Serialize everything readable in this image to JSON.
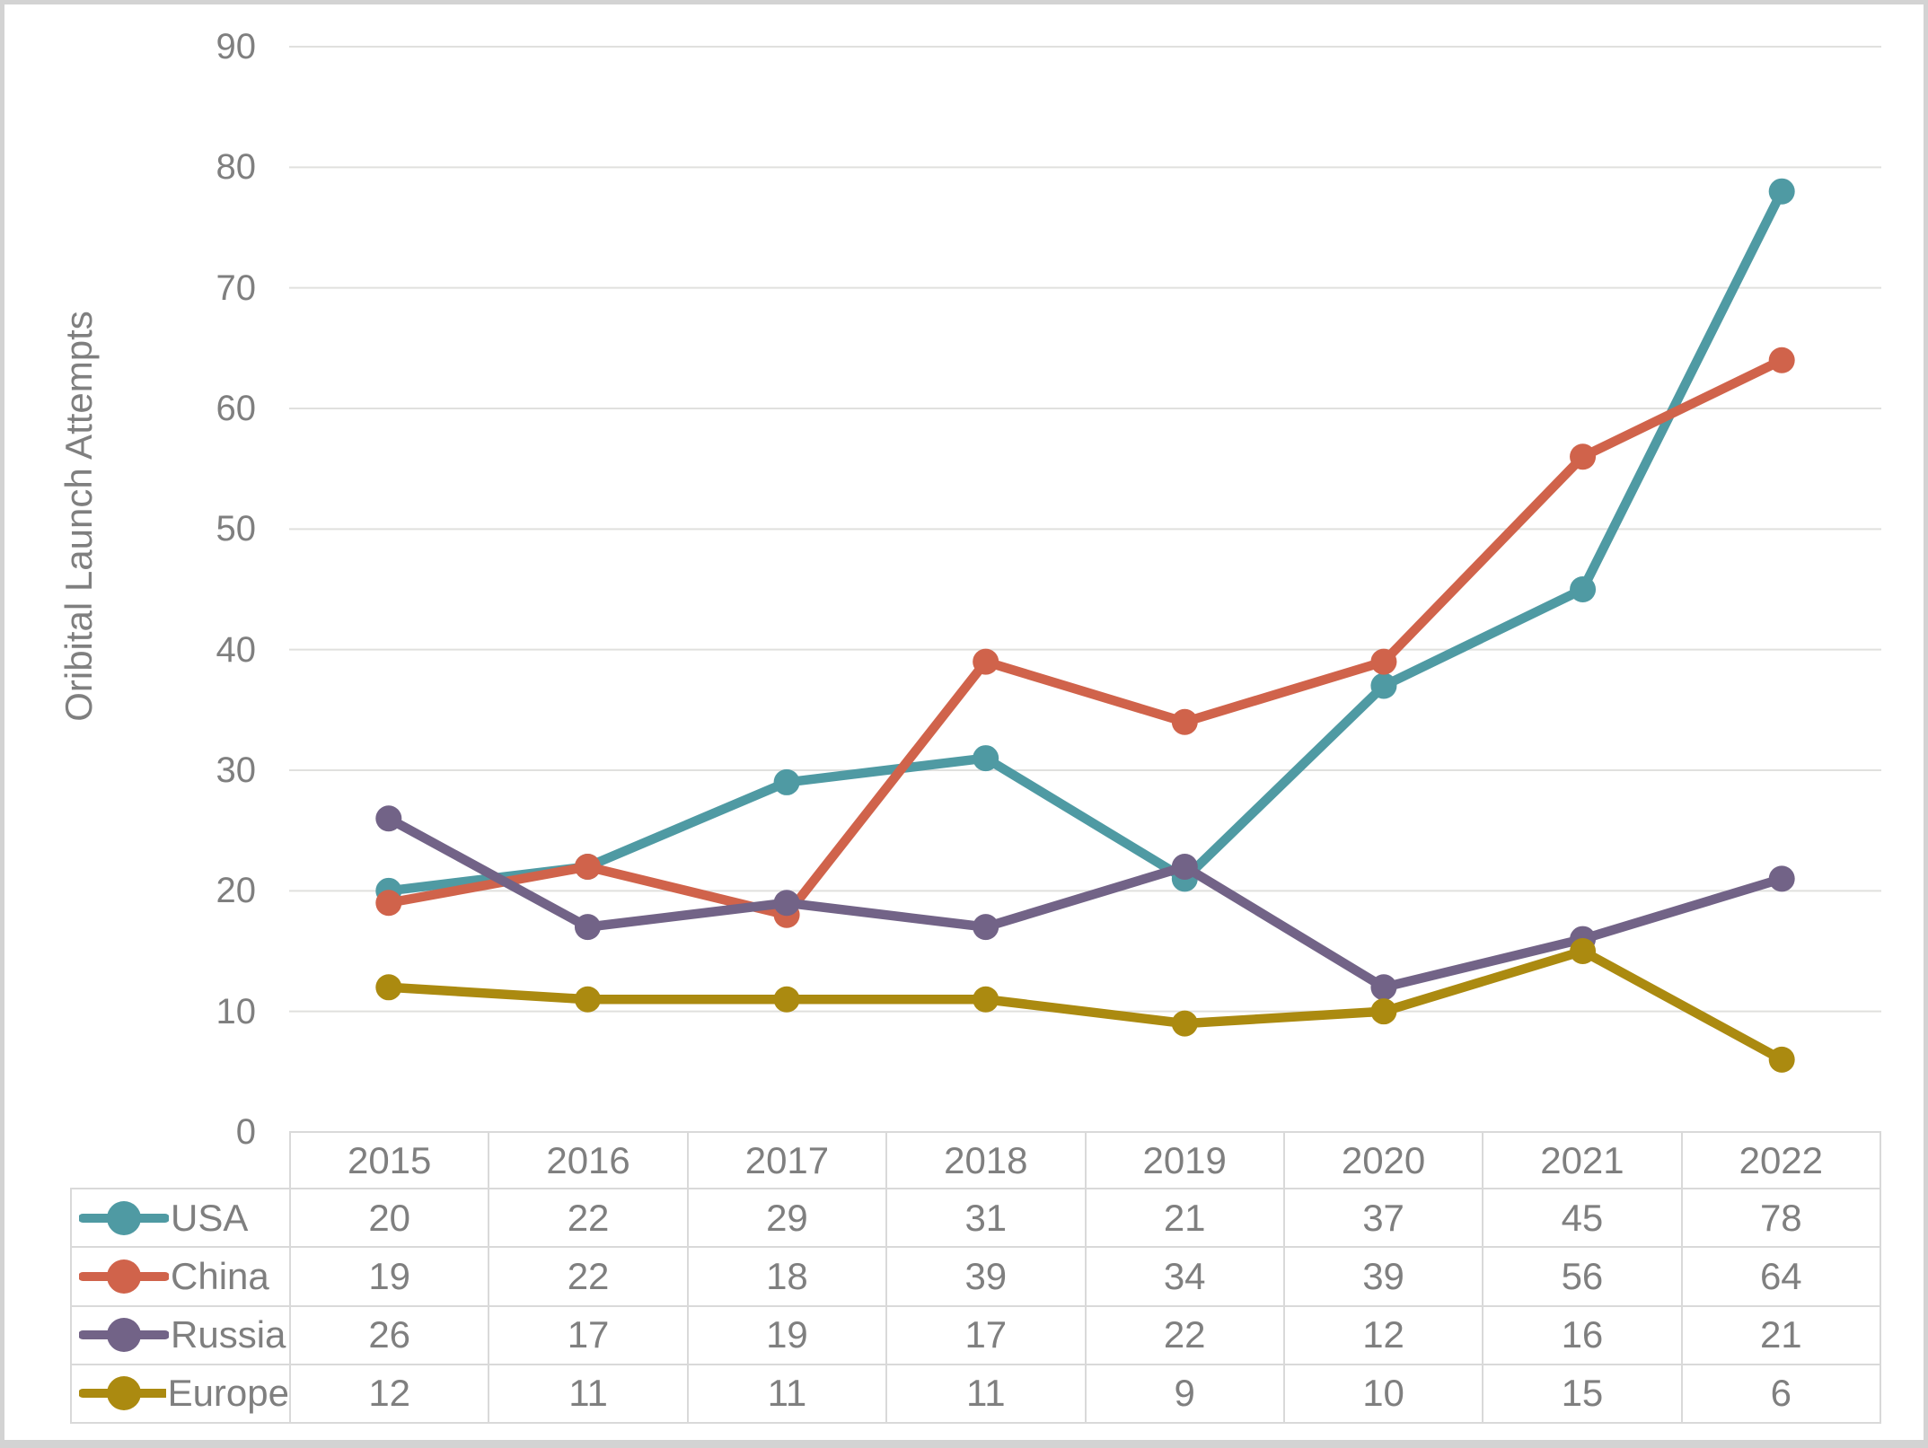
{
  "chart_data": {
    "type": "line",
    "title": "",
    "ylabel": "Oribital Launch Attempts",
    "xlabel": "",
    "categories": [
      "2015",
      "2016",
      "2017",
      "2018",
      "2019",
      "2020",
      "2021",
      "2022"
    ],
    "series": [
      {
        "name": "USA",
        "color": "#4f9aa3",
        "values": [
          20,
          22,
          29,
          31,
          21,
          37,
          45,
          78
        ]
      },
      {
        "name": "China",
        "color": "#d0634b",
        "values": [
          19,
          22,
          18,
          39,
          34,
          39,
          56,
          64
        ]
      },
      {
        "name": "Russia",
        "color": "#726387",
        "values": [
          26,
          17,
          19,
          17,
          22,
          12,
          16,
          21
        ]
      },
      {
        "name": "Europe",
        "color": "#ab8a10",
        "values": [
          12,
          11,
          11,
          11,
          9,
          10,
          15,
          6
        ]
      }
    ],
    "ylim": [
      0,
      90
    ],
    "yticks": [
      0,
      10,
      20,
      30,
      40,
      50,
      60,
      70,
      80,
      90
    ],
    "grid": "horizontal",
    "legend_position": "data-table-first-column",
    "data_table_shown": true
  },
  "styles": {
    "text_color": "#7f7f7f",
    "gridline_color": "#e0e0de",
    "table_border_color": "#d9d9d9",
    "frame_color": "#d3d3d3",
    "background": "#ffffff"
  }
}
